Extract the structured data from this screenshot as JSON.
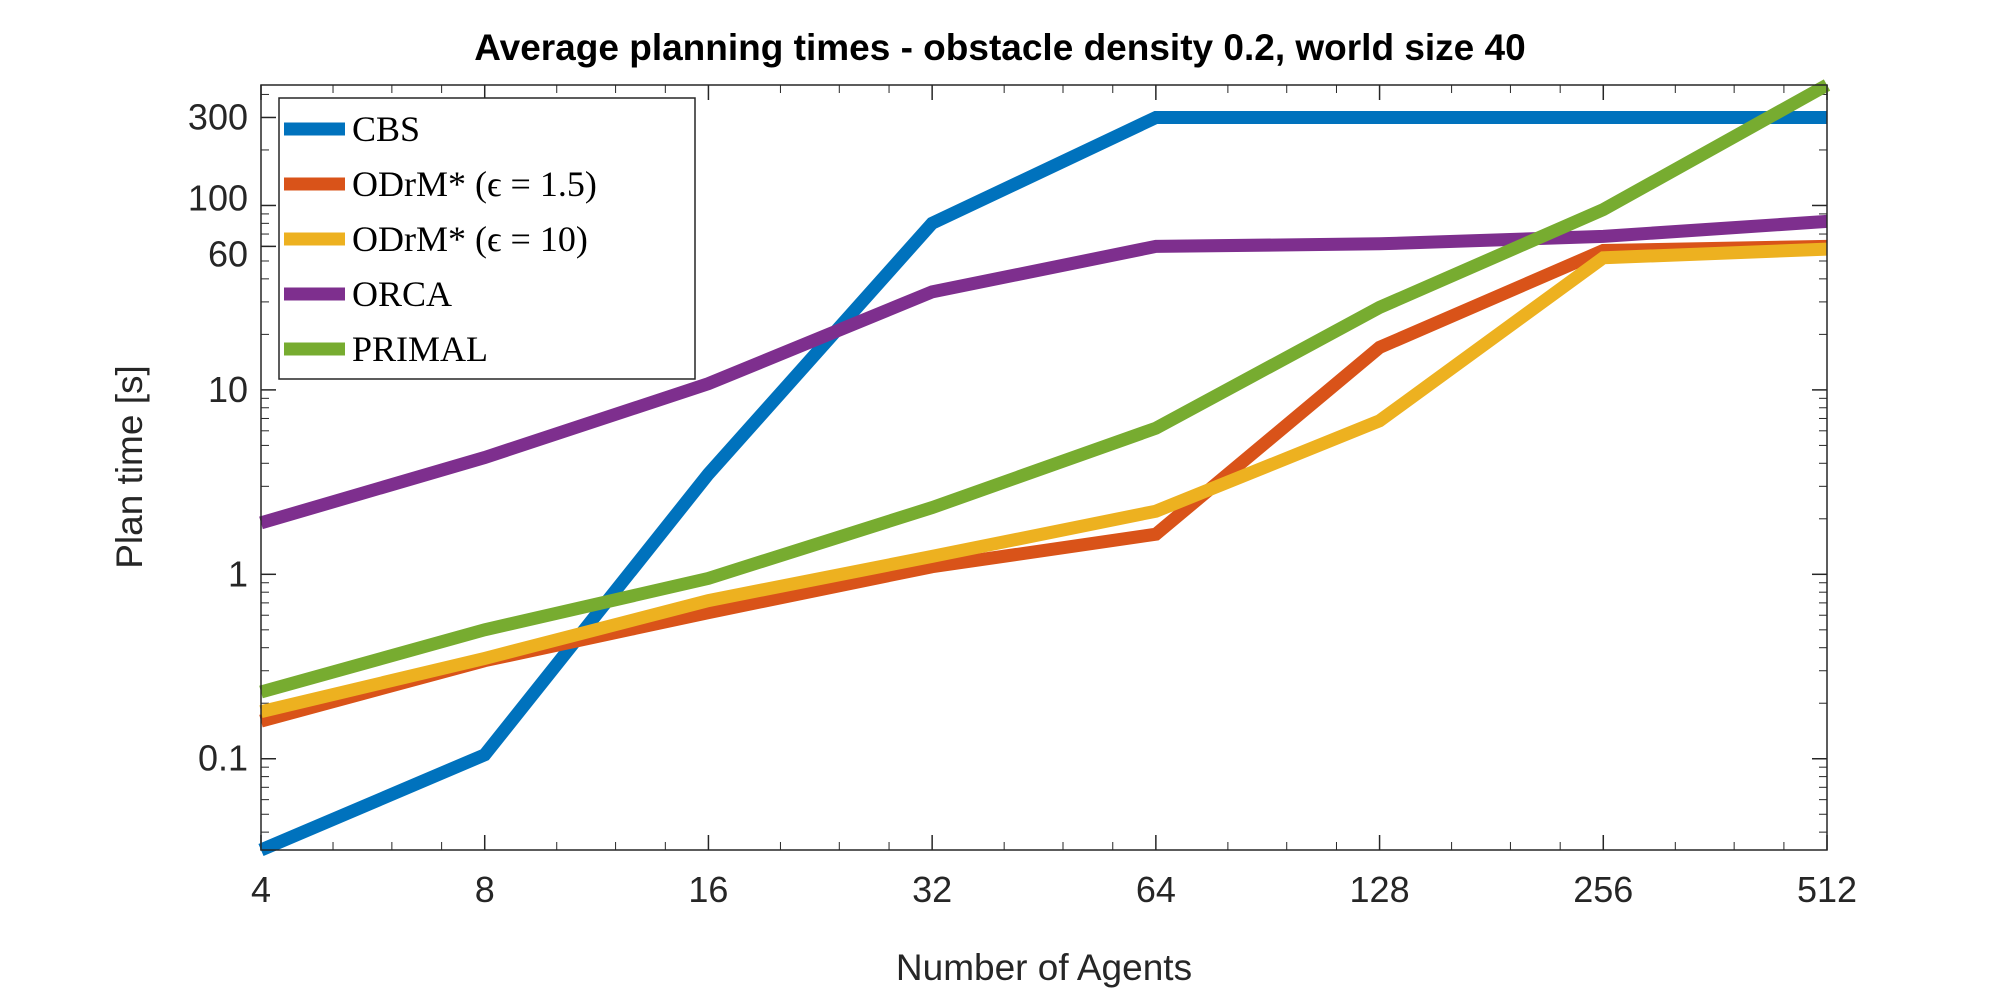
{
  "chart_data": {
    "type": "line",
    "title": "Average planning times - obstacle density 0.2, world size 40",
    "xlabel": "Number of Agents",
    "ylabel": "Plan time [s]",
    "x_scale": "log2",
    "y_scale": "log10",
    "xlim": [
      4,
      512
    ],
    "ylim": [
      0.032,
      450
    ],
    "x": [
      4,
      8,
      16,
      32,
      64,
      128,
      256,
      512
    ],
    "x_tick_labels": [
      "4",
      "8",
      "16",
      "32",
      "64",
      "128",
      "256",
      "512"
    ],
    "y_ticks": [
      0.1,
      1,
      10,
      60,
      100,
      300
    ],
    "y_tick_labels": [
      "0.1",
      "1",
      "10",
      "60",
      "100",
      "300"
    ],
    "grid": false,
    "legend_position": "top-left",
    "series": [
      {
        "name": "CBS",
        "color": "#0072BD",
        "values": [
          0.032,
          0.105,
          3.5,
          80,
          300,
          300,
          300,
          300
        ]
      },
      {
        "name": "ODrM* (ϵ = 1.5)",
        "color": "#D95319",
        "values": [
          0.16,
          0.34,
          0.62,
          1.1,
          1.65,
          17,
          57,
          60
        ]
      },
      {
        "name": "ODrM* (ϵ = 10)",
        "color": "#EDB120",
        "values": [
          0.18,
          0.35,
          0.72,
          1.25,
          2.2,
          6.8,
          52,
          58
        ]
      },
      {
        "name": "ORCA",
        "color": "#7E2F8E",
        "values": [
          1.9,
          4.3,
          10.8,
          34,
          60,
          62,
          68,
          82
        ]
      },
      {
        "name": "PRIMAL",
        "color": "#77AC30",
        "values": [
          0.23,
          0.5,
          0.95,
          2.3,
          6.2,
          28,
          95,
          450
        ]
      }
    ]
  }
}
